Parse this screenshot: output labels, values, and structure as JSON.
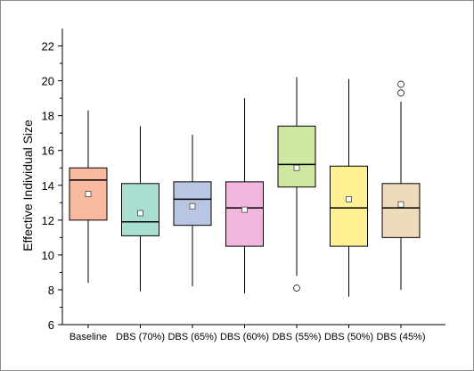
{
  "chart_data": {
    "type": "box",
    "title": "",
    "xlabel": "",
    "ylabel": "Effective Individual Size",
    "ylim": [
      6,
      23
    ],
    "yticks": [
      "6",
      "8",
      "10",
      "12",
      "14",
      "16",
      "18",
      "20",
      "22"
    ],
    "grid": false,
    "legend": "none",
    "categories": [
      "Baseline",
      "DBS (70%)",
      "DBS (65%)",
      "DBS (60%)",
      "DBS (55%)",
      "DBS (50%)",
      "DBS (45%)"
    ],
    "boxes": [
      {
        "category": "Baseline",
        "whisker_low": 8.4,
        "q1": 12.0,
        "median": 14.3,
        "q3": 15.0,
        "whisker_high": 18.3,
        "mean": 13.5,
        "outliers": [],
        "color": "#f9b9a0"
      },
      {
        "category": "DBS (70%)",
        "whisker_low": 7.9,
        "q1": 11.1,
        "median": 11.9,
        "q3": 14.1,
        "whisker_high": 17.4,
        "mean": 12.4,
        "outliers": [],
        "color": "#a9dfd0"
      },
      {
        "category": "DBS (65%)",
        "whisker_low": 8.2,
        "q1": 11.7,
        "median": 13.2,
        "q3": 14.2,
        "whisker_high": 16.9,
        "mean": 12.8,
        "outliers": [],
        "color": "#b9c6e3"
      },
      {
        "category": "DBS (60%)",
        "whisker_low": 7.8,
        "q1": 10.5,
        "median": 12.7,
        "q3": 14.2,
        "whisker_high": 19.0,
        "mean": 12.6,
        "outliers": [],
        "color": "#f0b6dc"
      },
      {
        "category": "DBS (55%)",
        "whisker_low": 8.8,
        "q1": 13.9,
        "median": 15.2,
        "q3": 17.4,
        "whisker_high": 20.2,
        "mean": 15.0,
        "outliers": [
          8.1
        ],
        "color": "#cfe8a1"
      },
      {
        "category": "DBS (50%)",
        "whisker_low": 7.6,
        "q1": 10.5,
        "median": 12.7,
        "q3": 15.1,
        "whisker_high": 20.1,
        "mean": 13.2,
        "outliers": [],
        "color": "#fff094"
      },
      {
        "category": "DBS (45%)",
        "whisker_low": 8.0,
        "q1": 11.0,
        "median": 12.7,
        "q3": 14.1,
        "whisker_high": 18.8,
        "mean": 12.9,
        "outliers": [
          19.3,
          19.8
        ],
        "color": "#efdbba"
      }
    ]
  }
}
